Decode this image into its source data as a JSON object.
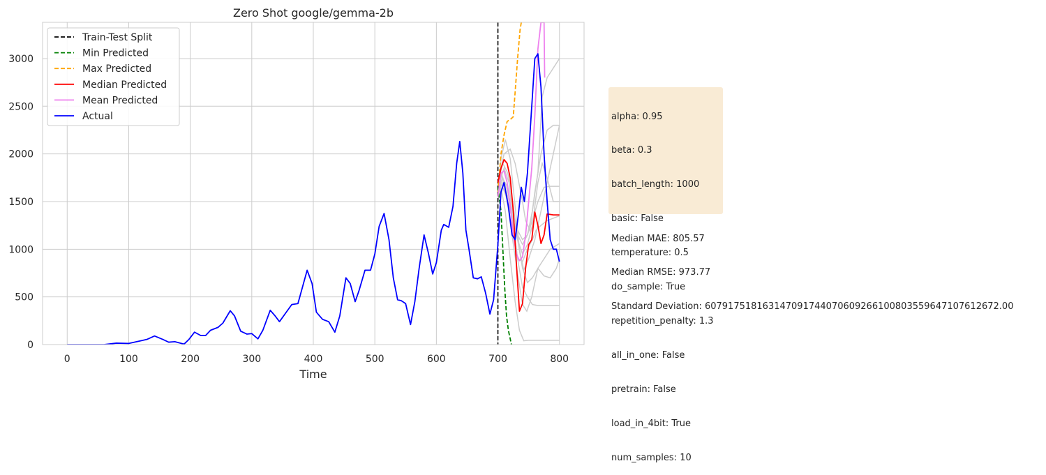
{
  "chart_data": {
    "type": "line",
    "title": "Zero Shot google/gemma-2b",
    "xlabel": "Time",
    "ylabel": "",
    "xlim": [
      -40,
      840
    ],
    "ylim": [
      0,
      3380
    ],
    "xticks": [
      0,
      100,
      200,
      300,
      400,
      500,
      600,
      700,
      800
    ],
    "yticks": [
      0,
      500,
      1000,
      1500,
      2000,
      2500,
      3000
    ],
    "grid": true,
    "legend_position": "top-left",
    "split_x": 700,
    "legend": [
      {
        "label": "Train-Test Split",
        "color": "#000000",
        "style": "dashed"
      },
      {
        "label": "Min Predicted",
        "color": "#008000",
        "style": "dashed"
      },
      {
        "label": "Max Predicted",
        "color": "#ffa500",
        "style": "dashed"
      },
      {
        "label": "Median Predicted",
        "color": "#ff0000",
        "style": "solid"
      },
      {
        "label": "Mean Predicted",
        "color": "#ee82ee",
        "style": "solid"
      },
      {
        "label": "Actual",
        "color": "#0000ff",
        "style": "solid"
      }
    ],
    "series": [
      {
        "name": "Actual",
        "color": "#0000ff",
        "style": "solid",
        "points": [
          [
            0,
            0
          ],
          [
            60,
            0
          ],
          [
            80,
            15
          ],
          [
            100,
            12
          ],
          [
            120,
            40
          ],
          [
            130,
            55
          ],
          [
            142,
            90
          ],
          [
            155,
            55
          ],
          [
            165,
            25
          ],
          [
            175,
            30
          ],
          [
            190,
            5
          ],
          [
            198,
            55
          ],
          [
            207,
            130
          ],
          [
            217,
            95
          ],
          [
            225,
            95
          ],
          [
            233,
            150
          ],
          [
            245,
            180
          ],
          [
            253,
            225
          ],
          [
            265,
            355
          ],
          [
            272,
            300
          ],
          [
            282,
            140
          ],
          [
            292,
            110
          ],
          [
            300,
            115
          ],
          [
            310,
            60
          ],
          [
            318,
            150
          ],
          [
            330,
            360
          ],
          [
            338,
            300
          ],
          [
            345,
            240
          ],
          [
            355,
            330
          ],
          [
            365,
            420
          ],
          [
            375,
            430
          ],
          [
            390,
            780
          ],
          [
            398,
            640
          ],
          [
            405,
            340
          ],
          [
            415,
            265
          ],
          [
            425,
            240
          ],
          [
            435,
            130
          ],
          [
            443,
            300
          ],
          [
            453,
            700
          ],
          [
            460,
            640
          ],
          [
            468,
            450
          ],
          [
            474,
            560
          ],
          [
            484,
            780
          ],
          [
            493,
            780
          ],
          [
            500,
            950
          ],
          [
            507,
            1240
          ],
          [
            515,
            1375
          ],
          [
            523,
            1100
          ],
          [
            530,
            700
          ],
          [
            537,
            470
          ],
          [
            543,
            460
          ],
          [
            550,
            430
          ],
          [
            558,
            210
          ],
          [
            565,
            450
          ],
          [
            572,
            800
          ],
          [
            580,
            1150
          ],
          [
            587,
            960
          ],
          [
            594,
            740
          ],
          [
            600,
            860
          ],
          [
            608,
            1200
          ],
          [
            612,
            1260
          ],
          [
            620,
            1230
          ],
          [
            627,
            1450
          ],
          [
            633,
            1900
          ],
          [
            638,
            2130
          ],
          [
            643,
            1800
          ],
          [
            648,
            1200
          ],
          [
            653,
            1000
          ],
          [
            660,
            700
          ],
          [
            667,
            690
          ],
          [
            673,
            710
          ],
          [
            680,
            540
          ],
          [
            687,
            320
          ],
          [
            693,
            470
          ],
          [
            700,
            1050
          ],
          [
            705,
            1600
          ],
          [
            710,
            1700
          ],
          [
            717,
            1450
          ],
          [
            723,
            1150
          ],
          [
            728,
            1100
          ],
          [
            733,
            1350
          ],
          [
            738,
            1650
          ],
          [
            743,
            1500
          ],
          [
            748,
            1800
          ],
          [
            755,
            2500
          ],
          [
            760,
            3000
          ],
          [
            765,
            3050
          ],
          [
            770,
            2700
          ],
          [
            775,
            2000
          ],
          [
            780,
            1500
          ],
          [
            785,
            1100
          ],
          [
            790,
            1000
          ],
          [
            795,
            1000
          ],
          [
            800,
            870
          ]
        ]
      },
      {
        "name": "Median Predicted",
        "color": "#ff0000",
        "style": "solid",
        "points": [
          [
            700,
            1700
          ],
          [
            705,
            1850
          ],
          [
            710,
            1940
          ],
          [
            715,
            1900
          ],
          [
            720,
            1750
          ],
          [
            725,
            1400
          ],
          [
            730,
            850
          ],
          [
            735,
            350
          ],
          [
            740,
            430
          ],
          [
            745,
            800
          ],
          [
            750,
            1050
          ],
          [
            755,
            1100
          ],
          [
            760,
            1390
          ],
          [
            765,
            1250
          ],
          [
            770,
            1060
          ],
          [
            775,
            1150
          ],
          [
            780,
            1370
          ],
          [
            790,
            1360
          ],
          [
            800,
            1360
          ]
        ]
      },
      {
        "name": "Mean Predicted",
        "color": "#ee82ee",
        "style": "solid",
        "points": [
          [
            700,
            1550
          ],
          [
            705,
            1800
          ],
          [
            710,
            1820
          ],
          [
            715,
            1700
          ],
          [
            720,
            1450
          ],
          [
            725,
            1150
          ],
          [
            730,
            950
          ],
          [
            735,
            880
          ],
          [
            740,
            920
          ],
          [
            745,
            1150
          ],
          [
            750,
            1500
          ],
          [
            755,
            1850
          ],
          [
            760,
            2400
          ],
          [
            765,
            3100
          ],
          [
            770,
            3380
          ],
          [
            775,
            3380
          ],
          [
            776,
            2800
          ]
        ]
      },
      {
        "name": "Max Predicted",
        "color": "#ffa500",
        "style": "dashed",
        "points": [
          [
            700,
            1600
          ],
          [
            705,
            2000
          ],
          [
            710,
            2200
          ],
          [
            715,
            2340
          ],
          [
            720,
            2360
          ],
          [
            725,
            2390
          ],
          [
            728,
            2650
          ],
          [
            732,
            3000
          ],
          [
            736,
            3300
          ],
          [
            738,
            3380
          ]
        ]
      },
      {
        "name": "Min Predicted",
        "color": "#008000",
        "style": "dashed",
        "points": [
          [
            700,
            1650
          ],
          [
            705,
            1400
          ],
          [
            708,
            1000
          ],
          [
            711,
            600
          ],
          [
            714,
            300
          ],
          [
            717,
            150
          ],
          [
            720,
            60
          ],
          [
            722,
            0
          ]
        ]
      }
    ],
    "sample_series": [
      [
        [
          700,
          1600
        ],
        [
          705,
          1950
        ],
        [
          712,
          2150
        ],
        [
          720,
          1950
        ],
        [
          728,
          1450
        ],
        [
          735,
          1000
        ],
        [
          742,
          780
        ],
        [
          750,
          900
        ],
        [
          760,
          1100
        ],
        [
          770,
          1400
        ],
        [
          780,
          1700
        ],
        [
          790,
          2000
        ],
        [
          800,
          2300
        ]
      ],
      [
        [
          700,
          1650
        ],
        [
          710,
          1850
        ],
        [
          718,
          1700
        ],
        [
          725,
          1250
        ],
        [
          732,
          900
        ],
        [
          740,
          870
        ],
        [
          748,
          1000
        ],
        [
          756,
          1100
        ],
        [
          762,
          1200
        ],
        [
          770,
          1250
        ],
        [
          780,
          1300
        ],
        [
          800,
          1350
        ]
      ],
      [
        [
          700,
          1600
        ],
        [
          706,
          1800
        ],
        [
          715,
          1500
        ],
        [
          724,
          1100
        ],
        [
          733,
          700
        ],
        [
          740,
          420
        ],
        [
          747,
          350
        ],
        [
          755,
          500
        ],
        [
          765,
          800
        ],
        [
          775,
          900
        ],
        [
          785,
          1000
        ],
        [
          800,
          1060
        ]
      ],
      [
        [
          700,
          1550
        ],
        [
          707,
          1750
        ],
        [
          716,
          1650
        ],
        [
          724,
          1300
        ],
        [
          732,
          900
        ],
        [
          740,
          600
        ],
        [
          748,
          500
        ],
        [
          756,
          420
        ],
        [
          765,
          410
        ],
        [
          775,
          410
        ],
        [
          800,
          410
        ]
      ],
      [
        [
          700,
          1700
        ],
        [
          708,
          1900
        ],
        [
          716,
          1800
        ],
        [
          724,
          1500
        ],
        [
          732,
          1100
        ],
        [
          740,
          800
        ],
        [
          748,
          650
        ],
        [
          756,
          700
        ],
        [
          765,
          800
        ],
        [
          775,
          720
        ],
        [
          785,
          700
        ],
        [
          795,
          800
        ],
        [
          800,
          900
        ]
      ],
      [
        [
          700,
          1500
        ],
        [
          705,
          1650
        ],
        [
          712,
          1400
        ],
        [
          720,
          900
        ],
        [
          728,
          450
        ],
        [
          735,
          150
        ],
        [
          742,
          40
        ],
        [
          750,
          45
        ],
        [
          760,
          45
        ],
        [
          780,
          45
        ],
        [
          800,
          45
        ]
      ],
      [
        [
          700,
          1700
        ],
        [
          710,
          2000
        ],
        [
          720,
          2050
        ],
        [
          728,
          1900
        ],
        [
          734,
          1700
        ],
        [
          740,
          1500
        ],
        [
          745,
          1300
        ],
        [
          752,
          1200
        ],
        [
          760,
          1600
        ],
        [
          770,
          2000
        ],
        [
          780,
          2250
        ],
        [
          790,
          2300
        ],
        [
          800,
          2300
        ]
      ],
      [
        [
          700,
          1650
        ],
        [
          708,
          1750
        ],
        [
          716,
          1600
        ],
        [
          724,
          1400
        ],
        [
          732,
          1200
        ],
        [
          740,
          1100
        ],
        [
          748,
          1150
        ],
        [
          756,
          1300
        ],
        [
          765,
          1500
        ],
        [
          775,
          1650
        ],
        [
          785,
          1660
        ],
        [
          800,
          1660
        ]
      ],
      [
        [
          700,
          1600
        ],
        [
          708,
          1700
        ],
        [
          716,
          1550
        ],
        [
          724,
          1350
        ],
        [
          732,
          1100
        ],
        [
          740,
          950
        ],
        [
          748,
          1050
        ],
        [
          756,
          1250
        ],
        [
          765,
          1700
        ],
        [
          772,
          1900
        ],
        [
          780,
          1750
        ],
        [
          790,
          1500
        ],
        [
          800,
          1500
        ]
      ],
      [
        [
          700,
          1550
        ],
        [
          708,
          1650
        ],
        [
          716,
          1500
        ],
        [
          724,
          1300
        ],
        [
          732,
          1150
        ],
        [
          740,
          1050
        ],
        [
          748,
          1150
        ],
        [
          756,
          1400
        ],
        [
          765,
          1800
        ],
        [
          772,
          2600
        ],
        [
          780,
          2800
        ],
        [
          790,
          2900
        ],
        [
          800,
          3000
        ]
      ]
    ],
    "sample_color": "#cccccc"
  },
  "info_box": {
    "lines": [
      "alpha: 0.95",
      "beta: 0.3",
      "batch_length: 1000",
      "basic: False",
      "temperature: 0.5",
      "do_sample: True",
      "repetition_penalty: 1.3",
      "all_in_one: False",
      "pretrain: False",
      "load_in_4bit: True",
      "num_samples: 10"
    ],
    "background": "#f9ebd5"
  },
  "metrics": {
    "lines": [
      "Median MAE: 805.57",
      "Median RMSE: 973.77",
      "Standard Deviation: 607917518163147091744070609266100803559647107612672.00"
    ]
  }
}
